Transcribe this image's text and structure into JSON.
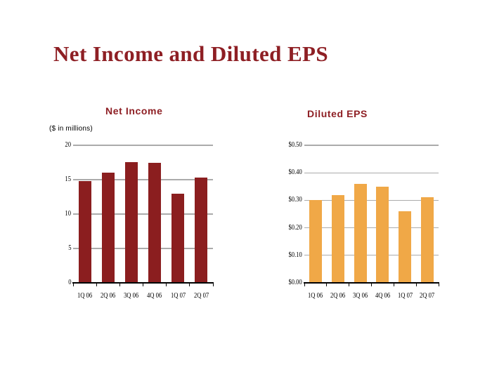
{
  "page": {
    "title": "Net Income and Diluted EPS"
  },
  "colors": {
    "title_text": "#8E1F24",
    "subtitle_text": "#8E1F24",
    "net_income_bar": "#8B1E1F",
    "eps_bar": "#F0A847",
    "gridline": "#ABABAB",
    "axis_line": "#000000",
    "note_text": "#000000"
  },
  "chart_data": [
    {
      "type": "bar",
      "title": "Net Income",
      "units_note": "($ in millions)",
      "categories": [
        "1Q 06",
        "2Q 06",
        "3Q 06",
        "4Q 06",
        "1Q 07",
        "2Q 07"
      ],
      "values": [
        14.8,
        16.0,
        17.6,
        17.4,
        13.0,
        15.3
      ],
      "ylim": [
        0,
        20
      ],
      "yticks": [
        0,
        5,
        10,
        15,
        20
      ],
      "ytick_labels": [
        "0",
        "5",
        "10",
        "15",
        "20"
      ],
      "xlabel": "",
      "ylabel": "",
      "bar_color": "#8B1E1F",
      "grid": true,
      "legend_position": "none"
    },
    {
      "type": "bar",
      "title": "Diluted EPS",
      "units_note": "",
      "categories": [
        "1Q 06",
        "2Q 06",
        "3Q 06",
        "4Q 06",
        "1Q 07",
        "2Q 07"
      ],
      "values": [
        0.3,
        0.32,
        0.36,
        0.35,
        0.26,
        0.31
      ],
      "ylim": [
        0,
        0.5
      ],
      "yticks": [
        0,
        0.1,
        0.2,
        0.3,
        0.4,
        0.5
      ],
      "ytick_labels": [
        "$0.00",
        "$0.10",
        "$0.20",
        "$0.30",
        "$0.40",
        "$0.50"
      ],
      "xlabel": "",
      "ylabel": "",
      "bar_color": "#F0A847",
      "grid": true,
      "legend_position": "none"
    }
  ]
}
